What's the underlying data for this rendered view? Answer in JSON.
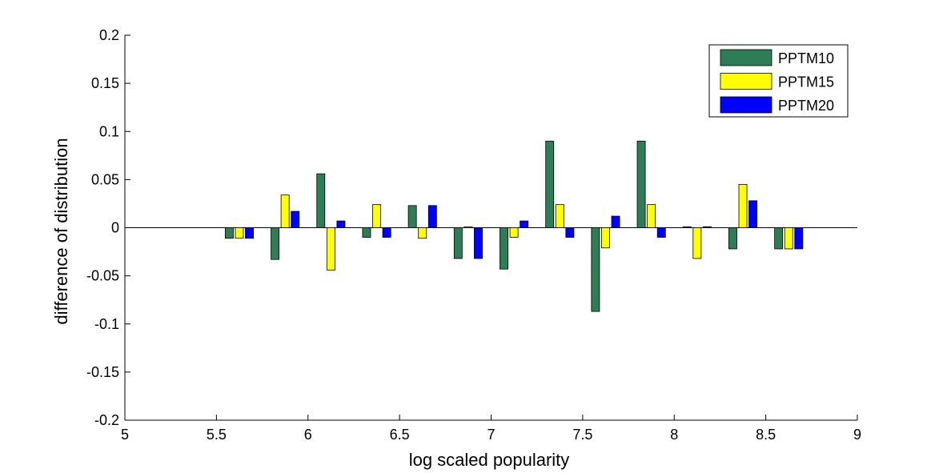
{
  "chart_data": {
    "type": "bar",
    "xlabel": "log scaled popularity",
    "ylabel": "difference of distribution",
    "xlim": [
      5,
      9
    ],
    "ylim": [
      -0.2,
      0.2
    ],
    "xticks": [
      5,
      5.5,
      6,
      6.5,
      7,
      7.5,
      8,
      8.5,
      9
    ],
    "xtick_labels": [
      "5",
      "5.5",
      "6",
      "6.5",
      "7",
      "7.5",
      "8",
      "8.5",
      "9"
    ],
    "yticks": [
      -0.2,
      -0.15,
      -0.1,
      -0.05,
      0,
      0.05,
      0.1,
      0.15,
      0.2
    ],
    "ytick_labels": [
      "-0.2",
      "-0.15",
      "-0.1",
      "-0.05",
      "0",
      "0.05",
      "0.1",
      "0.15",
      "0.2"
    ],
    "grid": false,
    "legend_position": "top-right",
    "x": [
      5.625,
      5.875,
      6.125,
      6.375,
      6.625,
      6.875,
      7.125,
      7.375,
      7.625,
      7.875,
      8.125,
      8.375,
      8.625
    ],
    "series": [
      {
        "name": "PPTM10",
        "color": "#2e7d57",
        "values": [
          -0.011,
          -0.033,
          0.056,
          -0.01,
          0.023,
          -0.032,
          -0.043,
          0.09,
          -0.087,
          0.09,
          0.001,
          -0.022,
          -0.022
        ]
      },
      {
        "name": "PPTM15",
        "color": "#ffff00",
        "values": [
          -0.011,
          0.034,
          -0.044,
          0.024,
          -0.011,
          0.001,
          -0.01,
          0.024,
          -0.021,
          0.024,
          -0.032,
          0.045,
          -0.022
        ]
      },
      {
        "name": "PPTM20",
        "color": "#0000ff",
        "values": [
          -0.011,
          0.017,
          0.007,
          -0.01,
          0.023,
          -0.032,
          0.007,
          -0.01,
          0.012,
          -0.01,
          0.001,
          0.028,
          -0.022
        ]
      }
    ]
  }
}
